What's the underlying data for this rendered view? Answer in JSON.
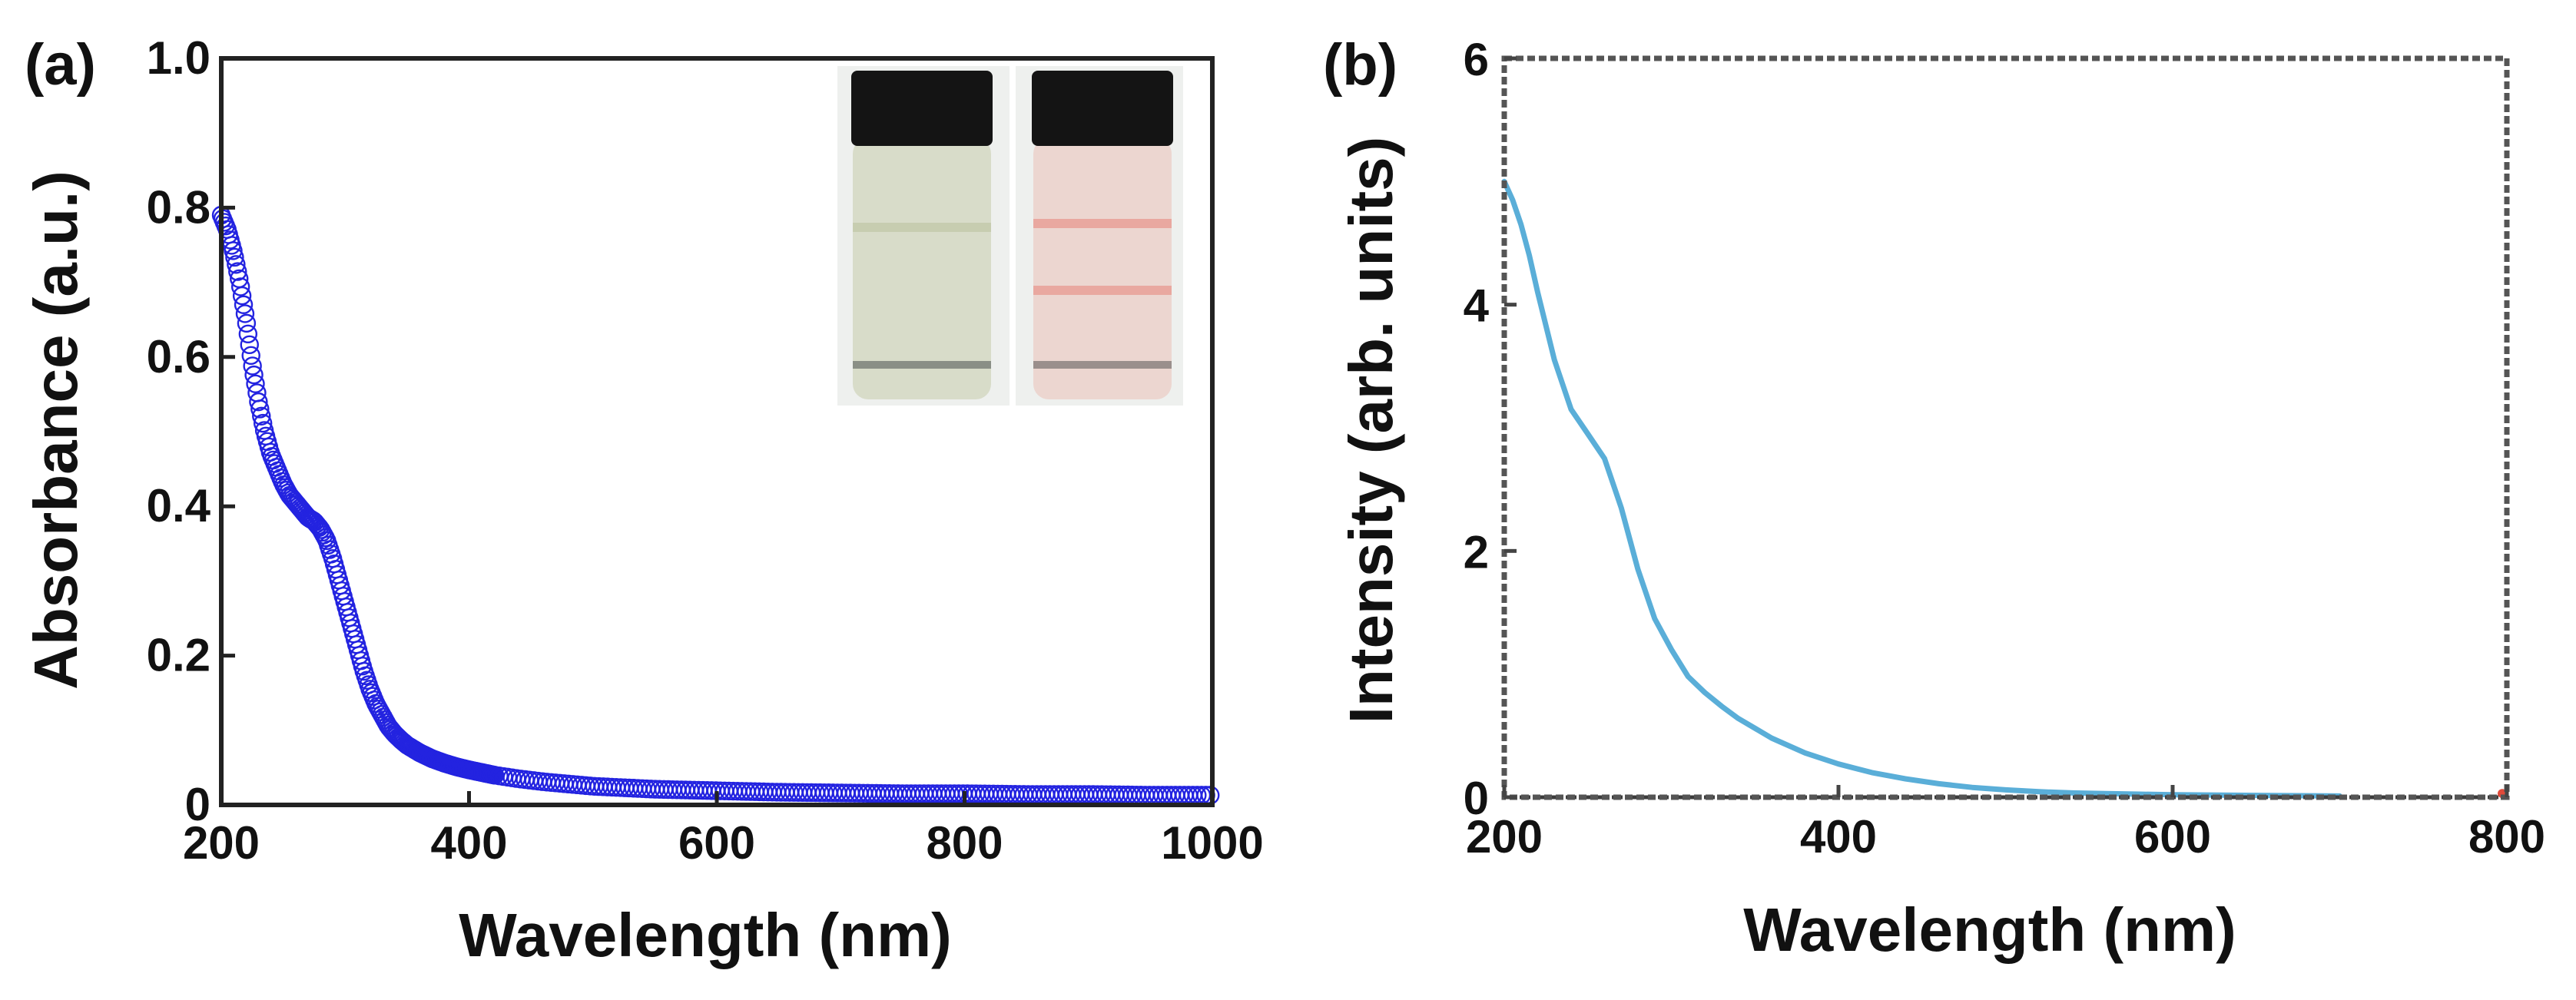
{
  "chart_data": [
    {
      "panel_label": "(a)",
      "type": "scatter",
      "marker": "open-circle",
      "xlabel": "Wavelength (nm)",
      "ylabel": "Absorbance (a.u.)",
      "xlim": [
        200,
        1000
      ],
      "ylim": [
        0,
        1.0
      ],
      "xticks": [
        "200",
        "400",
        "600",
        "800",
        "1000"
      ],
      "yticks": [
        "0",
        "0.2",
        "0.4",
        "0.6",
        "0.8",
        "1.0"
      ],
      "series": [
        {
          "name": "absorbance",
          "color": "#2323e0",
          "x": [
            200,
            205,
            210,
            215,
            220,
            225,
            230,
            235,
            240,
            245,
            250,
            255,
            260,
            265,
            270,
            275,
            280,
            285,
            290,
            295,
            300,
            305,
            310,
            315,
            320,
            325,
            330,
            335,
            340,
            345,
            350,
            360,
            370,
            380,
            390,
            400,
            420,
            440,
            460,
            480,
            500,
            550,
            600,
            650,
            700,
            750,
            800,
            850,
            900,
            950,
            1000
          ],
          "y": [
            0.79,
            0.77,
            0.74,
            0.7,
            0.65,
            0.59,
            0.54,
            0.5,
            0.47,
            0.45,
            0.43,
            0.415,
            0.405,
            0.395,
            0.385,
            0.38,
            0.37,
            0.355,
            0.33,
            0.3,
            0.27,
            0.24,
            0.21,
            0.18,
            0.155,
            0.135,
            0.12,
            0.105,
            0.095,
            0.087,
            0.08,
            0.07,
            0.062,
            0.056,
            0.051,
            0.047,
            0.04,
            0.035,
            0.031,
            0.028,
            0.025,
            0.021,
            0.019,
            0.017,
            0.016,
            0.015,
            0.015,
            0.014,
            0.014,
            0.013,
            0.013
          ]
        }
      ],
      "inset": {
        "content": "photo of two vials",
        "cap_color": "#141414",
        "liquid_colors": [
          "#d8dcc9",
          "#ecd6d0"
        ],
        "band_colors": [
          "#c7cdb0",
          "#e9a8a0"
        ]
      }
    },
    {
      "panel_label": "(b)",
      "type": "line",
      "xlabel": "Wavelength (nm)",
      "ylabel": "Intensity (arb. units)",
      "xlim": [
        200,
        800
      ],
      "ylim": [
        0,
        6
      ],
      "xticks": [
        "200",
        "400",
        "600",
        "800"
      ],
      "yticks": [
        "0",
        "2",
        "4",
        "6"
      ],
      "series": [
        {
          "name": "intensity",
          "color": "#5aaed8",
          "x": [
            200,
            205,
            210,
            215,
            220,
            230,
            240,
            250,
            260,
            270,
            280,
            290,
            300,
            310,
            320,
            330,
            340,
            350,
            360,
            380,
            400,
            420,
            440,
            460,
            480,
            500,
            520,
            540,
            560,
            580,
            600,
            650,
            700
          ],
          "y": [
            5.0,
            4.85,
            4.65,
            4.4,
            4.1,
            3.55,
            3.15,
            2.95,
            2.75,
            2.35,
            1.85,
            1.45,
            1.2,
            0.98,
            0.85,
            0.74,
            0.64,
            0.56,
            0.48,
            0.36,
            0.27,
            0.2,
            0.15,
            0.11,
            0.08,
            0.06,
            0.045,
            0.035,
            0.03,
            0.025,
            0.02,
            0.015,
            0.01
          ]
        }
      ],
      "end_marker_color": "#e04a3a"
    }
  ]
}
